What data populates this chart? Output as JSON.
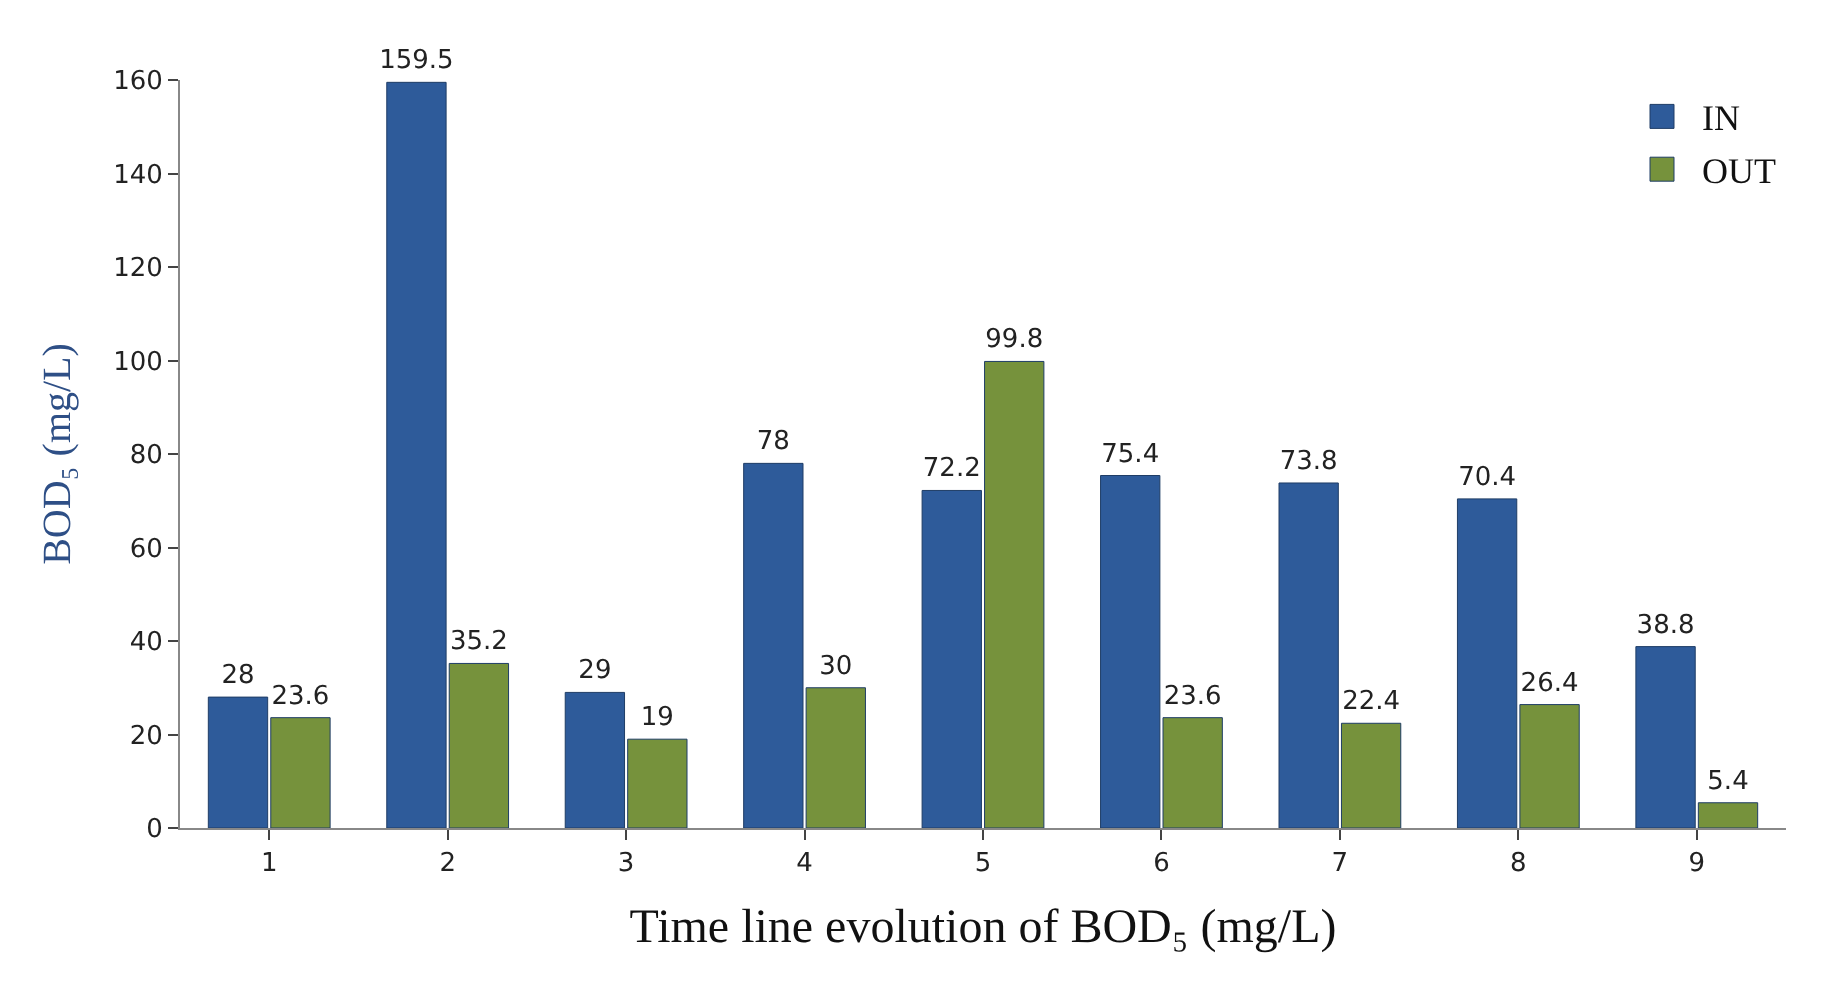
{
  "chart_data": {
    "type": "bar",
    "xlabel": "Time line evolution of BOD₅ (mg/L)",
    "ylabel": "BOD₅ (mg/L)",
    "categories": [
      "1",
      "2",
      "3",
      "4",
      "5",
      "6",
      "7",
      "8",
      "9"
    ],
    "series": [
      {
        "name": "IN",
        "color": "#2e5b9a",
        "values": [
          28,
          159.5,
          29,
          78,
          72.2,
          75.4,
          73.8,
          70.4,
          38.8
        ]
      },
      {
        "name": "OUT",
        "color": "#76923c",
        "values": [
          23.6,
          35.2,
          19,
          30,
          99.8,
          23.6,
          22.4,
          26.4,
          5.4
        ]
      }
    ],
    "ylim": [
      0,
      160
    ],
    "yticks": [
      0,
      20,
      40,
      60,
      80,
      100,
      120,
      140,
      160
    ],
    "data_labels": true,
    "legend": "top right"
  }
}
